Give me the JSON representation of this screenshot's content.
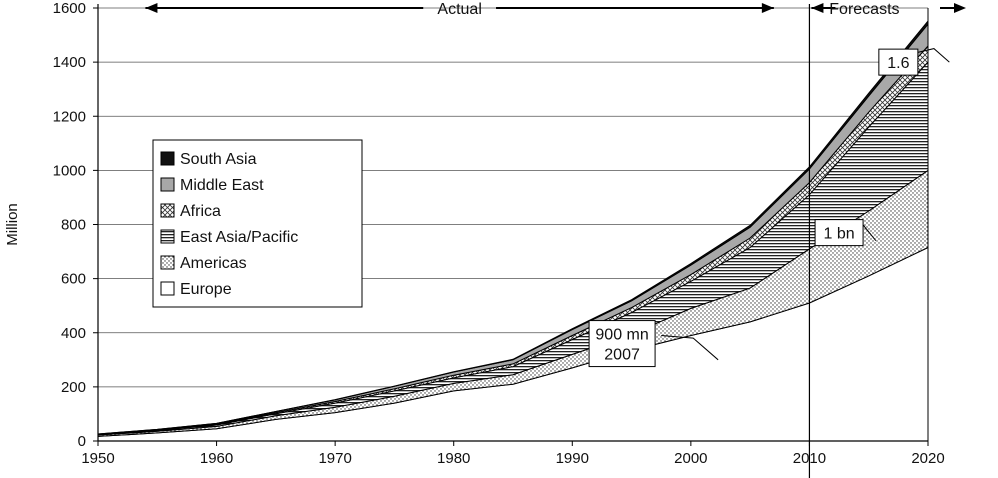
{
  "chart_data": {
    "type": "area",
    "stacked": true,
    "title": "",
    "xlabel": "",
    "ylabel": "Million",
    "xlim": [
      1950,
      2020
    ],
    "ylim": [
      0,
      1600
    ],
    "x_ticks": [
      1950,
      1960,
      1970,
      1980,
      1990,
      2000,
      2010,
      2020
    ],
    "y_ticks": [
      0,
      200,
      400,
      600,
      800,
      1000,
      1200,
      1400,
      1600
    ],
    "grid": "horizontal",
    "legend_position": "left",
    "vertical_marker_x": 2010,
    "x": [
      1950,
      1955,
      1960,
      1965,
      1970,
      1975,
      1980,
      1985,
      1990,
      1995,
      2000,
      2005,
      2010,
      2015,
      2020
    ],
    "series": [
      {
        "name": "Europe",
        "pattern": "none",
        "values": [
          17,
          30,
          45,
          80,
          105,
          140,
          185,
          210,
          270,
          335,
          390,
          440,
          510,
          610,
          715
        ]
      },
      {
        "name": "Americas",
        "pattern": "dots",
        "values": [
          5,
          6,
          9,
          13,
          20,
          25,
          28,
          35,
          50,
          60,
          100,
          125,
          200,
          240,
          285
        ]
      },
      {
        "name": "East Asia/Pacific",
        "pattern": "horizontal-lines",
        "values": [
          2,
          3,
          5,
          8,
          15,
          20,
          20,
          30,
          55,
          80,
          100,
          150,
          200,
          310,
          400
        ]
      },
      {
        "name": "Africa",
        "pattern": "crosshatch",
        "values": [
          1,
          2,
          3,
          4,
          6,
          8,
          10,
          10,
          15,
          18,
          25,
          35,
          45,
          55,
          60
        ]
      },
      {
        "name": "Middle East",
        "pattern": "gray",
        "values": [
          1,
          2,
          3,
          4,
          6,
          9,
          12,
          15,
          22,
          25,
          35,
          40,
          50,
          60,
          80
        ]
      },
      {
        "name": "South Asia",
        "pattern": "black",
        "values": [
          0,
          0,
          0,
          0,
          1,
          1,
          1,
          2,
          3,
          4,
          6,
          7,
          8,
          10,
          12
        ]
      }
    ],
    "annotations": [
      {
        "text": "Actual",
        "kind": "double-arrow",
        "x_from": 1954,
        "x_to": 2007,
        "y": 1600
      },
      {
        "text": "Forecasts",
        "kind": "double-arrow",
        "x_from": 2010,
        "x_to": 2020,
        "y": 1600
      },
      {
        "text": "1.6",
        "kind": "callout",
        "x": 2017.5,
        "y": 1400
      },
      {
        "text": "1 bn",
        "kind": "callout",
        "x": 2012.5,
        "y": 770
      },
      {
        "text": [
          "900 mn",
          "2007"
        ],
        "kind": "callout",
        "x": 2002,
        "y": 360
      }
    ]
  }
}
